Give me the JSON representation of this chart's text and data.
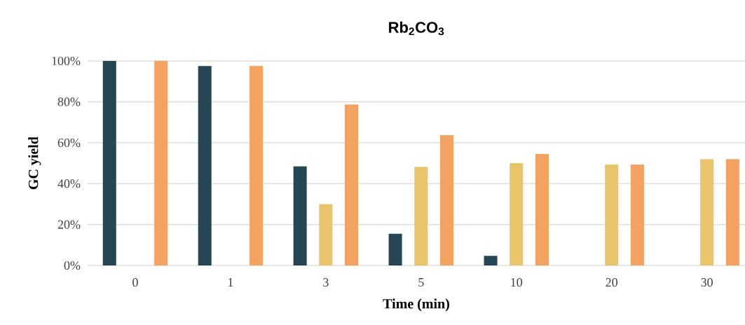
{
  "chart_data": {
    "type": "bar",
    "title": "Rb$_{2}$CO$_{3}$",
    "xlabel": "Time (min)",
    "ylabel": "GC yield",
    "categories": [
      "0",
      "1",
      "3",
      "5",
      "10",
      "20",
      "30"
    ],
    "series": [
      {
        "color": "#264653",
        "values": [
          100,
          97.5,
          48.5,
          15.5,
          4.7,
          null,
          null
        ]
      },
      {
        "color": "#e9c46a",
        "values": [
          null,
          null,
          30,
          48.2,
          50,
          49.3,
          52
        ]
      },
      {
        "color": "#f4a261",
        "values": [
          100,
          97.5,
          78.7,
          63.7,
          54.5,
          49.3,
          52
        ]
      }
    ],
    "ylim": [
      0,
      100
    ],
    "yticks": [
      {
        "value": 0,
        "label": "0%"
      },
      {
        "value": 20,
        "label": "20%"
      },
      {
        "value": 40,
        "label": "40%"
      },
      {
        "value": 60,
        "label": "60%"
      },
      {
        "value": 80,
        "label": "80%"
      },
      {
        "value": 100,
        "label": "100%"
      }
    ],
    "grid": "y"
  }
}
